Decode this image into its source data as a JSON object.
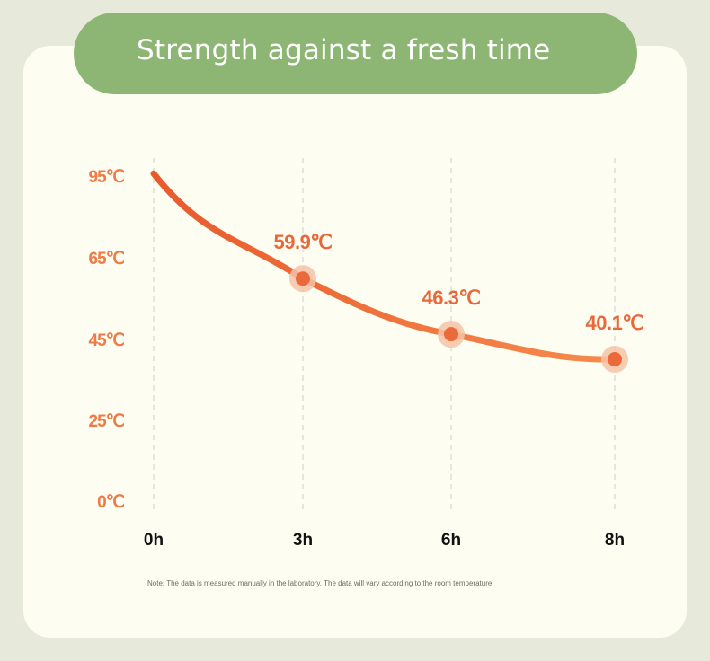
{
  "header": {
    "title": "Strength against a fresh time"
  },
  "chart_data": {
    "type": "line",
    "title": "Strength against a fresh time",
    "x": [
      "0h",
      "3h",
      "6h",
      "8h"
    ],
    "y_ticks": [
      "95℃",
      "65℃",
      "45℃",
      "25℃",
      "0℃"
    ],
    "series": [
      {
        "values": [
          98,
          59.9,
          46.3,
          40.1
        ]
      }
    ],
    "point_labels": [
      "",
      "59.9℃",
      "46.3℃",
      "40.1℃"
    ],
    "grid": "vertical dashed",
    "colors": {
      "line_start": "#e85a2c",
      "line_end": "#f68b4d",
      "label": "#e8683a",
      "tick_y": "#ef7a45",
      "tick_x": "#111111",
      "point": "#ea6a3a",
      "halo": "#f6c3a8"
    }
  },
  "footer": {
    "note": "Note: The data is measured manually in the laboratory. The data will vary according to the room temperature."
  }
}
